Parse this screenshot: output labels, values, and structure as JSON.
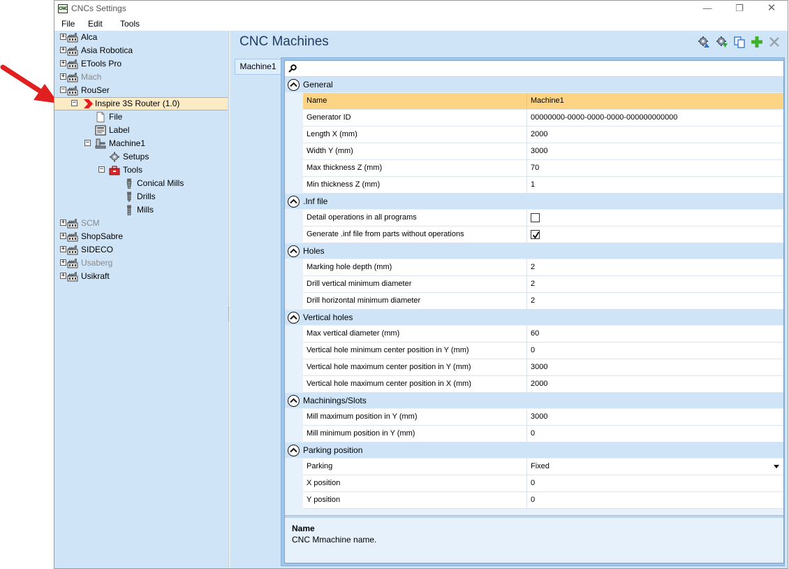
{
  "window": {
    "app_icon_text": "CNC",
    "title": "CNCs Settings",
    "minimize": "—",
    "maximize": "❐",
    "close": "✕"
  },
  "menu": [
    "File",
    "Edit",
    "Tools"
  ],
  "tree": {
    "nodes": [
      {
        "label": "Alca",
        "icon": "machine-group-icon",
        "expander": "+"
      },
      {
        "label": "Asia Robotica",
        "icon": "machine-group-icon",
        "expander": "+"
      },
      {
        "label": "ETools Pro",
        "icon": "machine-group-icon",
        "expander": "+"
      },
      {
        "label": "Mach",
        "icon": "machine-group-icon",
        "expander": "+"
      },
      {
        "label": "RouSer",
        "icon": "machine-group-icon",
        "expander": "−"
      },
      {
        "label": "Inspire 3S Router (1.0)",
        "icon": "red-chevron-icon",
        "expander": "−"
      },
      {
        "label": "File",
        "icon": "file-icon"
      },
      {
        "label": "Label",
        "icon": "label-icon"
      },
      {
        "label": "Machine1",
        "icon": "machine-icon",
        "expander": "−"
      },
      {
        "label": "Setups",
        "icon": "gear-icon"
      },
      {
        "label": "Tools",
        "icon": "toolbox-icon",
        "expander": "−"
      },
      {
        "label": "Conical Mills",
        "icon": "conical-mill-icon"
      },
      {
        "label": "Drills",
        "icon": "drill-icon"
      },
      {
        "label": "Mills",
        "icon": "mill-icon"
      },
      {
        "label": "SCM",
        "icon": "machine-group-icon",
        "expander": "+"
      },
      {
        "label": "ShopSabre",
        "icon": "machine-group-icon",
        "expander": "+"
      },
      {
        "label": "SIDECO",
        "icon": "machine-group-icon",
        "expander": "+"
      },
      {
        "label": "Usaberg",
        "icon": "machine-group-icon",
        "expander": "+"
      },
      {
        "label": "Usikraft",
        "icon": "machine-group-icon",
        "expander": "+"
      }
    ]
  },
  "main": {
    "title": "CNC Machines",
    "toolbar_icons": [
      "gear-upload-icon",
      "gear-download-icon",
      "copy-icon",
      "add-icon",
      "delete-icon"
    ],
    "tab_label": "Machine1",
    "search": {
      "value": "",
      "placeholder": ""
    }
  },
  "grid": {
    "categories": [
      {
        "label": "General",
        "rows": [
          {
            "name": "Name",
            "value": "Machine1"
          },
          {
            "name": "Generator ID",
            "value": "00000000-0000-0000-0000-000000000000"
          },
          {
            "name": "Length X (mm)",
            "value": "2000"
          },
          {
            "name": "Width Y (mm)",
            "value": "3000"
          },
          {
            "name": "Max thickness Z (mm)",
            "value": "70"
          },
          {
            "name": "Min thickness Z (mm)",
            "value": "1"
          }
        ]
      },
      {
        "label": ".Inf file",
        "rows": [
          {
            "name": "Detail operations in all programs",
            "checked": false
          },
          {
            "name": "Generate .inf file from parts without operations",
            "checked": true
          }
        ]
      },
      {
        "label": "Holes",
        "rows": [
          {
            "name": "Marking hole depth (mm)",
            "value": "2"
          },
          {
            "name": "Drill vertical minimum diameter",
            "value": "2"
          },
          {
            "name": "Drill horizontal minimum diameter",
            "value": "2"
          }
        ]
      },
      {
        "label": "Vertical holes",
        "rows": [
          {
            "name": "Max vertical diameter (mm)",
            "value": "60"
          },
          {
            "name": "Vertical hole minimum center position in Y (mm)",
            "value": "0"
          },
          {
            "name": "Vertical hole maximum center position in Y (mm)",
            "value": "3000"
          },
          {
            "name": "Vertical hole maximum center position in X (mm)",
            "value": "2000"
          }
        ]
      },
      {
        "label": "Machinings/Slots",
        "rows": [
          {
            "name": "Mill maximum position in Y (mm)",
            "value": "3000"
          },
          {
            "name": "Mill minimum position in Y (mm)",
            "value": "0"
          }
        ]
      },
      {
        "label": "Parking position",
        "rows": [
          {
            "name": "Parking",
            "value": "Fixed",
            "dropdown": true
          },
          {
            "name": "X position",
            "value": "0"
          },
          {
            "name": "Y position",
            "value": "0"
          }
        ]
      }
    ],
    "selected": "Name"
  },
  "description": {
    "title": "Name",
    "text": "CNC Mmachine name."
  },
  "colors": {
    "panel_bg": "#cfe4f7",
    "selected_row": "#fdd484",
    "tree_selected": "#fdebc6",
    "annotation_red": "#e0201e"
  }
}
